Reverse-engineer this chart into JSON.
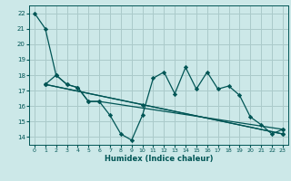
{
  "xlabel": "Humidex (Indice chaleur)",
  "background_color": "#cce8e8",
  "grid_color": "#aacaca",
  "line_color": "#005555",
  "xlim": [
    -0.5,
    23.5
  ],
  "ylim": [
    13.5,
    22.5
  ],
  "yticks": [
    14,
    15,
    16,
    17,
    18,
    19,
    20,
    21,
    22
  ],
  "xticks": [
    0,
    1,
    2,
    3,
    4,
    5,
    6,
    7,
    8,
    9,
    10,
    11,
    12,
    13,
    14,
    15,
    16,
    17,
    18,
    19,
    20,
    21,
    22,
    23
  ],
  "lines": [
    {
      "x": [
        0,
        1,
        2,
        3,
        4,
        5,
        6,
        7,
        8,
        9,
        10,
        11,
        12,
        13,
        14,
        15,
        16,
        17,
        18,
        19,
        20,
        21,
        22,
        23
      ],
      "y": [
        22.0,
        21.0,
        18.0,
        17.4,
        17.2,
        16.3,
        16.3,
        15.4,
        14.2,
        13.8,
        15.4,
        17.8,
        18.2,
        16.8,
        18.5,
        17.1,
        18.2,
        17.1,
        17.3,
        16.7,
        15.3,
        14.8,
        14.2,
        14.5
      ]
    },
    {
      "x": [
        1,
        2,
        3,
        4,
        5,
        6,
        23
      ],
      "y": [
        17.4,
        18.0,
        17.4,
        17.2,
        16.3,
        16.3,
        14.5
      ]
    },
    {
      "x": [
        1,
        10,
        23
      ],
      "y": [
        17.4,
        16.1,
        14.2
      ]
    },
    {
      "x": [
        1,
        23
      ],
      "y": [
        17.4,
        14.2
      ]
    }
  ]
}
